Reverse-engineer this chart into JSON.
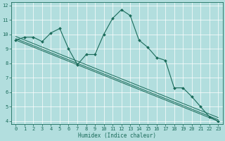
{
  "xlabel": "Humidex (Indice chaleur)",
  "background_color": "#b2dede",
  "grid_color": "#c8e8e8",
  "line_color": "#1a6b5a",
  "xlim": [
    -0.5,
    23.5
  ],
  "ylim": [
    3.8,
    12.2
  ],
  "yticks": [
    4,
    5,
    6,
    7,
    8,
    9,
    10,
    11,
    12
  ],
  "xticks": [
    0,
    1,
    2,
    3,
    4,
    5,
    6,
    7,
    8,
    9,
    10,
    11,
    12,
    13,
    14,
    15,
    16,
    17,
    18,
    19,
    20,
    21,
    22,
    23
  ],
  "series1_x": [
    0,
    1,
    2,
    3,
    4,
    5,
    6,
    7,
    8,
    9,
    10,
    11,
    12,
    13,
    14,
    15,
    16,
    17,
    18,
    19,
    20,
    21,
    22,
    23
  ],
  "series1_y": [
    9.6,
    9.8,
    9.8,
    9.5,
    10.1,
    10.4,
    9.0,
    7.9,
    8.6,
    8.6,
    10.0,
    11.1,
    11.7,
    11.3,
    9.6,
    9.1,
    8.4,
    8.2,
    6.3,
    6.3,
    5.7,
    5.0,
    4.3,
    4.0
  ],
  "series2_y": [
    9.6,
    4.0
  ],
  "series3_y": [
    9.85,
    4.25
  ],
  "series4_y": [
    9.7,
    4.1
  ]
}
